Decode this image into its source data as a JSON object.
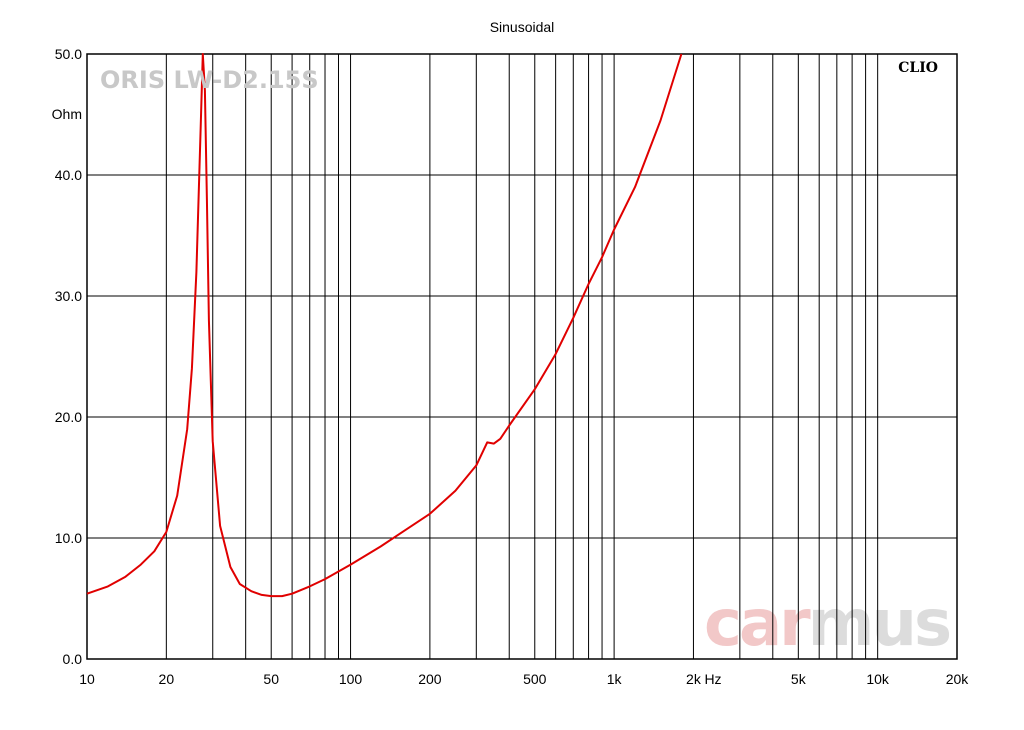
{
  "chart_data": {
    "type": "line",
    "title": "Sinusoidal",
    "xlabel": "Hz",
    "ylabel": "Ohm",
    "xscale": "log",
    "xlim": [
      10,
      20000
    ],
    "ylim": [
      0,
      50
    ],
    "grid": true,
    "logo": "CLIO",
    "model_label": "ORIS LW-D2.15S",
    "watermark": {
      "part1": "car",
      "part2": "mus",
      "color1": "#f2c8c8",
      "color2": "#dcdcdc"
    },
    "line_color": "#e00000",
    "x_tick_values": [
      10,
      20,
      50,
      100,
      200,
      500,
      1000,
      2000,
      5000,
      10000,
      20000
    ],
    "x_tick_labels": [
      "10",
      "20",
      "50",
      "100",
      "200",
      "500",
      "1k",
      "2k",
      "5k",
      "10k",
      "20k"
    ],
    "y_tick_values": [
      0,
      10,
      20,
      30,
      40,
      50
    ],
    "y_tick_labels": [
      "0.0",
      "10.0",
      "20.0",
      "30.0",
      "40.0",
      "50.0"
    ],
    "series": [
      {
        "x": [
          10,
          12,
          14,
          16,
          18,
          20,
          22,
          24,
          25,
          26,
          27,
          27.5,
          28,
          28.5,
          29,
          30,
          32,
          35,
          38,
          42,
          46,
          50,
          55,
          60,
          70,
          80,
          100,
          130,
          160,
          200,
          250,
          300,
          330,
          350,
          370,
          400,
          500,
          600,
          700,
          800,
          900,
          1000,
          1200,
          1500,
          1800
        ],
        "y": [
          5.4,
          6.0,
          6.8,
          7.8,
          8.9,
          10.5,
          13.5,
          19.0,
          24.0,
          32.0,
          44.0,
          50.0,
          47.0,
          38.0,
          28.0,
          18.0,
          11.0,
          7.6,
          6.2,
          5.6,
          5.3,
          5.2,
          5.2,
          5.4,
          6.0,
          6.6,
          7.8,
          9.3,
          10.6,
          12.0,
          13.9,
          16.0,
          17.9,
          17.8,
          18.2,
          19.3,
          22.3,
          25.2,
          28.2,
          31.0,
          33.2,
          35.5,
          39.0,
          44.5,
          50.0
        ]
      }
    ]
  }
}
